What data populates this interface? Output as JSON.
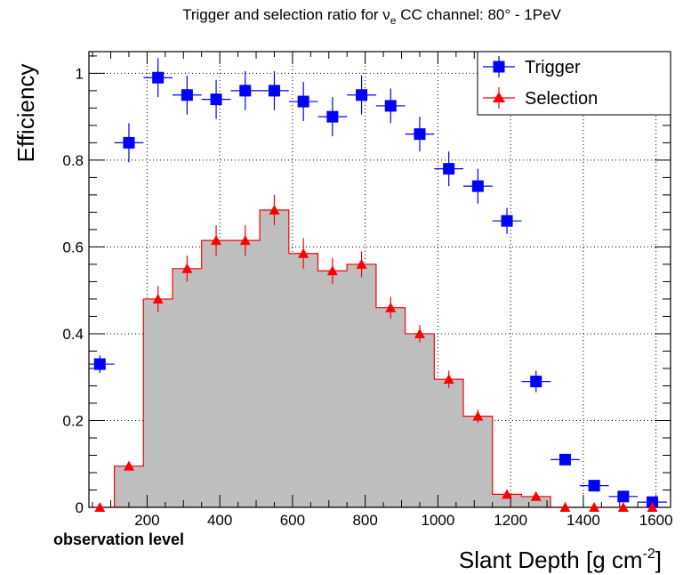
{
  "chart_data": {
    "type": "scatter",
    "title_prefix": "Trigger and selection ratio for ",
    "title_nu": "ν",
    "title_sub": "e",
    "title_suffix": " CC channel: 80° - 1PeV",
    "xlabel_main": "Slant Depth [g cm",
    "xlabel_sup": "-2",
    "xlabel_close": "]",
    "ylabel": "Efficiency",
    "annotation": "observation level",
    "xlim": [
      40,
      1640
    ],
    "ylim": [
      0,
      1.05
    ],
    "xticks": [
      {
        "value": 200,
        "label": "200"
      },
      {
        "value": 400,
        "label": "400"
      },
      {
        "value": 600,
        "label": "600"
      },
      {
        "value": 800,
        "label": "800"
      },
      {
        "value": 1000,
        "label": "1000"
      },
      {
        "value": 1200,
        "label": "1200"
      },
      {
        "value": 1400,
        "label": "1400"
      },
      {
        "value": 1600,
        "label": "1600"
      }
    ],
    "yticks": [
      {
        "value": 0,
        "label": "0"
      },
      {
        "value": 0.2,
        "label": "0.2"
      },
      {
        "value": 0.4,
        "label": "0.4"
      },
      {
        "value": 0.6,
        "label": "0.6"
      },
      {
        "value": 0.8,
        "label": "0.8"
      },
      {
        "value": 1,
        "label": "1"
      }
    ],
    "grid": true,
    "legend_position": "top-right",
    "series": [
      {
        "name": "Trigger",
        "color": "#0000ff",
        "marker": "square",
        "points": [
          {
            "x": 70,
            "y": 0.33,
            "xerr": 40,
            "yerr": 0.02
          },
          {
            "x": 150,
            "y": 0.84,
            "xerr": 40,
            "yerr": 0.045
          },
          {
            "x": 230,
            "y": 0.99,
            "xerr": 40,
            "yerr": 0.045
          },
          {
            "x": 310,
            "y": 0.95,
            "xerr": 40,
            "yerr": 0.045
          },
          {
            "x": 390,
            "y": 0.94,
            "xerr": 40,
            "yerr": 0.045
          },
          {
            "x": 470,
            "y": 0.96,
            "xerr": 40,
            "yerr": 0.045
          },
          {
            "x": 550,
            "y": 0.96,
            "xerr": 40,
            "yerr": 0.045
          },
          {
            "x": 630,
            "y": 0.935,
            "xerr": 40,
            "yerr": 0.045
          },
          {
            "x": 710,
            "y": 0.9,
            "xerr": 40,
            "yerr": 0.045
          },
          {
            "x": 790,
            "y": 0.95,
            "xerr": 40,
            "yerr": 0.045
          },
          {
            "x": 870,
            "y": 0.925,
            "xerr": 40,
            "yerr": 0.04
          },
          {
            "x": 950,
            "y": 0.86,
            "xerr": 40,
            "yerr": 0.04
          },
          {
            "x": 1030,
            "y": 0.78,
            "xerr": 40,
            "yerr": 0.04
          },
          {
            "x": 1110,
            "y": 0.74,
            "xerr": 40,
            "yerr": 0.04
          },
          {
            "x": 1190,
            "y": 0.66,
            "xerr": 40,
            "yerr": 0.03
          },
          {
            "x": 1270,
            "y": 0.29,
            "xerr": 40,
            "yerr": 0.025
          },
          {
            "x": 1350,
            "y": 0.11,
            "xerr": 40,
            "yerr": 0.01
          },
          {
            "x": 1430,
            "y": 0.05,
            "xerr": 40,
            "yerr": 0.01
          },
          {
            "x": 1510,
            "y": 0.025,
            "xerr": 40,
            "yerr": 0.005
          },
          {
            "x": 1590,
            "y": 0.012,
            "xerr": 40,
            "yerr": 0.005
          }
        ]
      },
      {
        "name": "Selection",
        "color": "#ff0000",
        "marker": "triangle",
        "fill_color": "#c8c8c8",
        "bin_edges": [
          30,
          110,
          190,
          270,
          350,
          430,
          510,
          590,
          670,
          750,
          830,
          910,
          990,
          1070,
          1150,
          1230,
          1310,
          1390,
          1470,
          1550,
          1630
        ],
        "points": [
          {
            "x": 70,
            "y": 0.0,
            "yerr": 0.0
          },
          {
            "x": 150,
            "y": 0.095,
            "yerr": 0.01
          },
          {
            "x": 230,
            "y": 0.48,
            "yerr": 0.03
          },
          {
            "x": 310,
            "y": 0.55,
            "yerr": 0.03
          },
          {
            "x": 390,
            "y": 0.615,
            "yerr": 0.035
          },
          {
            "x": 470,
            "y": 0.615,
            "yerr": 0.035
          },
          {
            "x": 550,
            "y": 0.685,
            "yerr": 0.035
          },
          {
            "x": 630,
            "y": 0.585,
            "yerr": 0.035
          },
          {
            "x": 710,
            "y": 0.545,
            "yerr": 0.03
          },
          {
            "x": 790,
            "y": 0.56,
            "yerr": 0.03
          },
          {
            "x": 870,
            "y": 0.46,
            "yerr": 0.025
          },
          {
            "x": 950,
            "y": 0.4,
            "yerr": 0.02
          },
          {
            "x": 1030,
            "y": 0.295,
            "yerr": 0.02
          },
          {
            "x": 1110,
            "y": 0.21,
            "yerr": 0.015
          },
          {
            "x": 1190,
            "y": 0.03,
            "yerr": 0.005
          },
          {
            "x": 1270,
            "y": 0.025,
            "yerr": 0.005
          },
          {
            "x": 1350,
            "y": 0.0,
            "yerr": 0.0
          },
          {
            "x": 1430,
            "y": 0.0,
            "yerr": 0.0
          },
          {
            "x": 1510,
            "y": 0.0,
            "yerr": 0.0
          },
          {
            "x": 1590,
            "y": 0.0,
            "yerr": 0.0
          }
        ]
      }
    ]
  }
}
